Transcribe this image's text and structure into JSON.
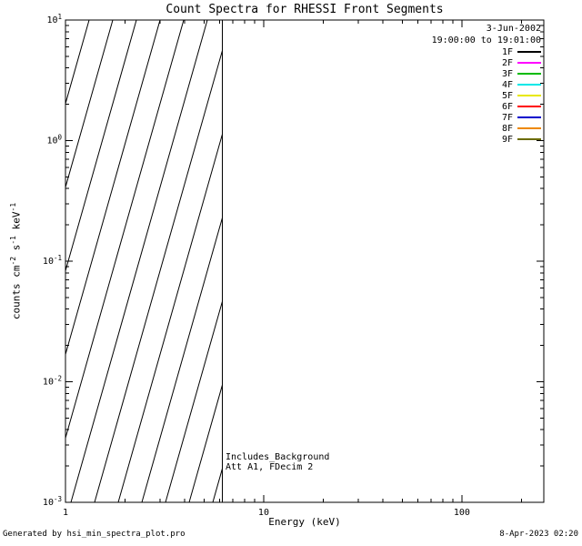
{
  "page": {
    "footer_left": "Generated by hsi_min_spectra_plot.pro",
    "footer_right": "8-Apr-2023 02:20"
  },
  "chart_data": {
    "type": "line",
    "title": "Count Spectra for RHESSI Front Segments",
    "xlabel": "Energy (keV)",
    "ylabel": "counts cm^-2 s^-1 keV^-1",
    "ylabel_parts": [
      {
        "text": "counts cm"
      },
      {
        "sup": "-2"
      },
      {
        "text": " s"
      },
      {
        "sup": "-1"
      },
      {
        "text": " keV"
      },
      {
        "sup": "-1"
      }
    ],
    "xscale": "log",
    "yscale": "log",
    "xlim": [
      1,
      259
    ],
    "ylim": [
      0.001,
      10
    ],
    "grid": false,
    "xticks": [
      {
        "value": 1,
        "label": "1"
      },
      {
        "value": 10,
        "label": "10"
      },
      {
        "value": 100,
        "label": "100"
      }
    ],
    "yticks": [
      {
        "value": 10,
        "base": "10",
        "exp": "1"
      },
      {
        "value": 1,
        "base": "10",
        "exp": "0"
      },
      {
        "value": 0.1,
        "base": "10",
        "exp": "-1"
      },
      {
        "value": 0.01,
        "base": "10",
        "exp": "-2"
      },
      {
        "value": 0.001,
        "base": "10",
        "exp": "-3"
      }
    ],
    "series": [],
    "hatched_region": {
      "x_start": 1,
      "x_end": 6.2,
      "style": "diagonal-lines"
    },
    "cutoff_line_kev": 6.2,
    "annotations": [
      "Includes_Background",
      "Att A1, FDecim 2"
    ],
    "legend": {
      "position": "top-right",
      "date": "3-Jun-2002",
      "interval": "19:00:00 to 19:01:00",
      "entries": [
        {
          "label": "1F",
          "color": "#000000"
        },
        {
          "label": "2F",
          "color": "#ff00ff"
        },
        {
          "label": "3F",
          "color": "#00bb00"
        },
        {
          "label": "4F",
          "color": "#00e8e8"
        },
        {
          "label": "5F",
          "color": "#e8e800"
        },
        {
          "label": "6F",
          "color": "#ff0000"
        },
        {
          "label": "7F",
          "color": "#0000cc"
        },
        {
          "label": "8F",
          "color": "#ee8800"
        },
        {
          "label": "9F",
          "color": "#6b6b00"
        }
      ]
    }
  }
}
